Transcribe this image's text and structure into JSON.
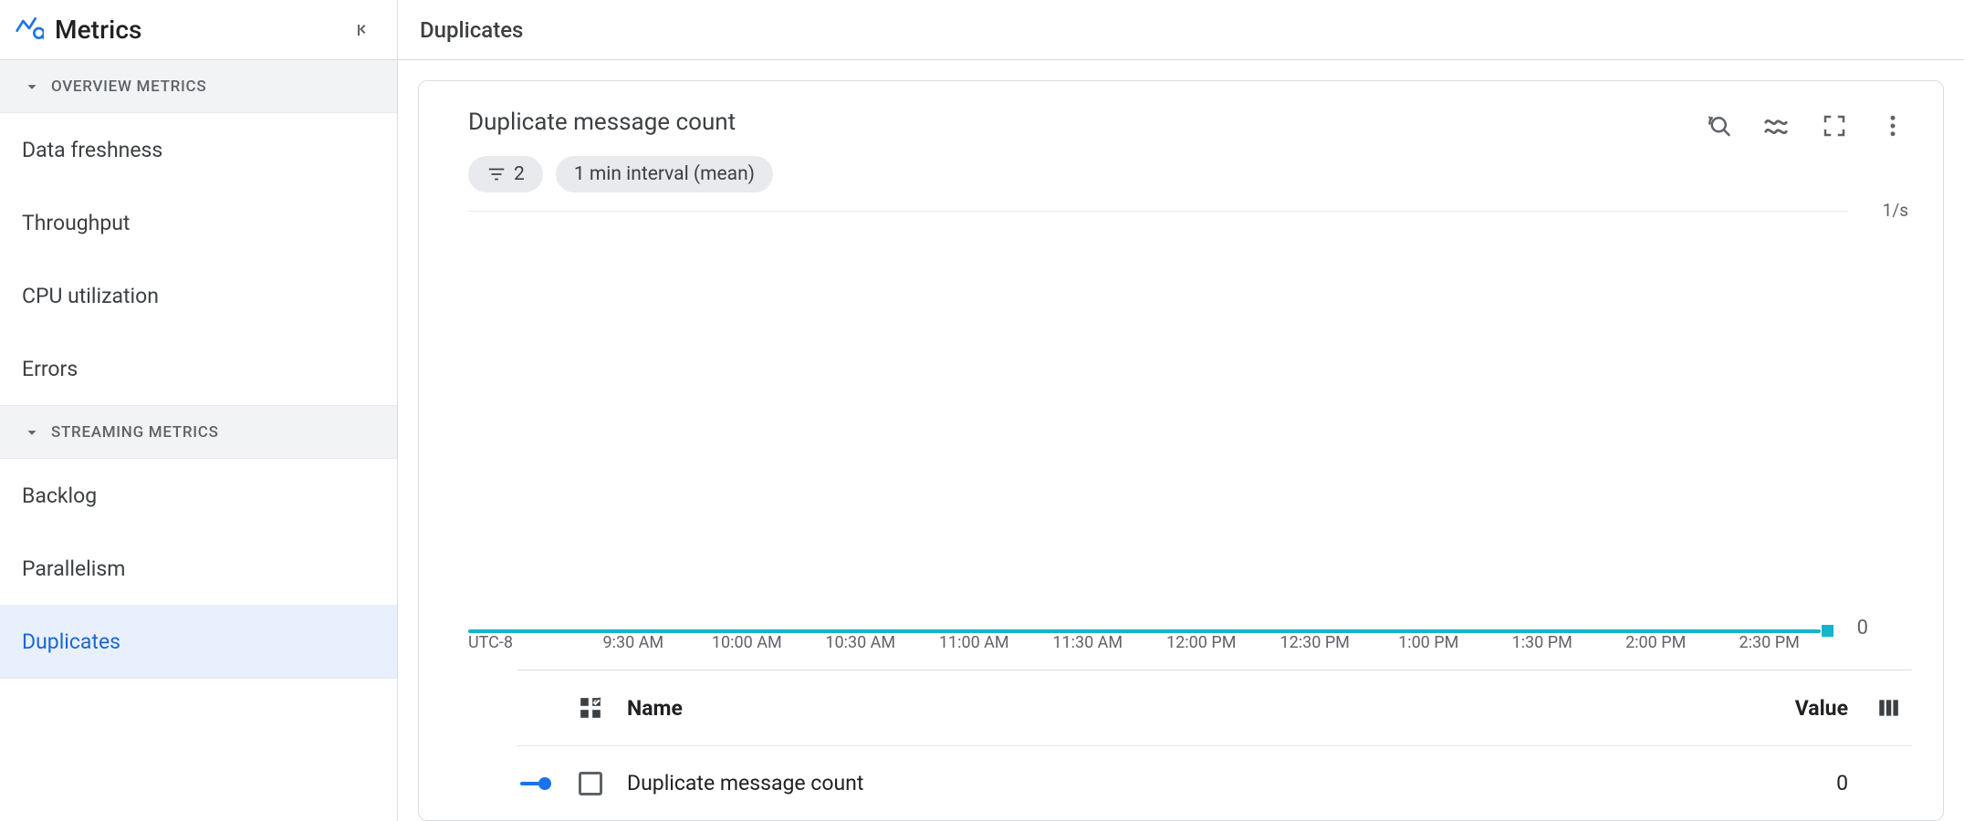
{
  "sidebar": {
    "title": "Metrics",
    "sections": [
      {
        "label": "OVERVIEW METRICS",
        "items": [
          {
            "label": "Data freshness",
            "active": false
          },
          {
            "label": "Throughput",
            "active": false
          },
          {
            "label": "CPU utilization",
            "active": false
          },
          {
            "label": "Errors",
            "active": false
          }
        ]
      },
      {
        "label": "STREAMING METRICS",
        "items": [
          {
            "label": "Backlog",
            "active": false
          },
          {
            "label": "Parallelism",
            "active": false
          },
          {
            "label": "Duplicates",
            "active": true
          }
        ]
      }
    ]
  },
  "main": {
    "title": "Duplicates",
    "card_title": "Duplicate message count",
    "filter_count": "2",
    "interval_label": "1 min interval (mean)",
    "chart": {
      "type": "line",
      "y_unit": "1/s",
      "y_zero_label": "0",
      "series_color": "#12b5cb",
      "timezone_label": "UTC-8",
      "x_ticks": [
        "9:30 AM",
        "10:00 AM",
        "10:30 AM",
        "11:00 AM",
        "11:30 AM",
        "12:00 PM",
        "12:30 PM",
        "1:00 PM",
        "1:30 PM",
        "2:00 PM",
        "2:30 PM"
      ],
      "x_tick_positions_pct": [
        12.2,
        20.6,
        29.0,
        37.4,
        45.8,
        54.2,
        62.6,
        71.0,
        79.4,
        87.8,
        96.2
      ]
    },
    "legend": {
      "name_header": "Name",
      "value_header": "Value",
      "rows": [
        {
          "name": "Duplicate message count",
          "value": "0",
          "color": "#1a73e8"
        }
      ]
    }
  }
}
